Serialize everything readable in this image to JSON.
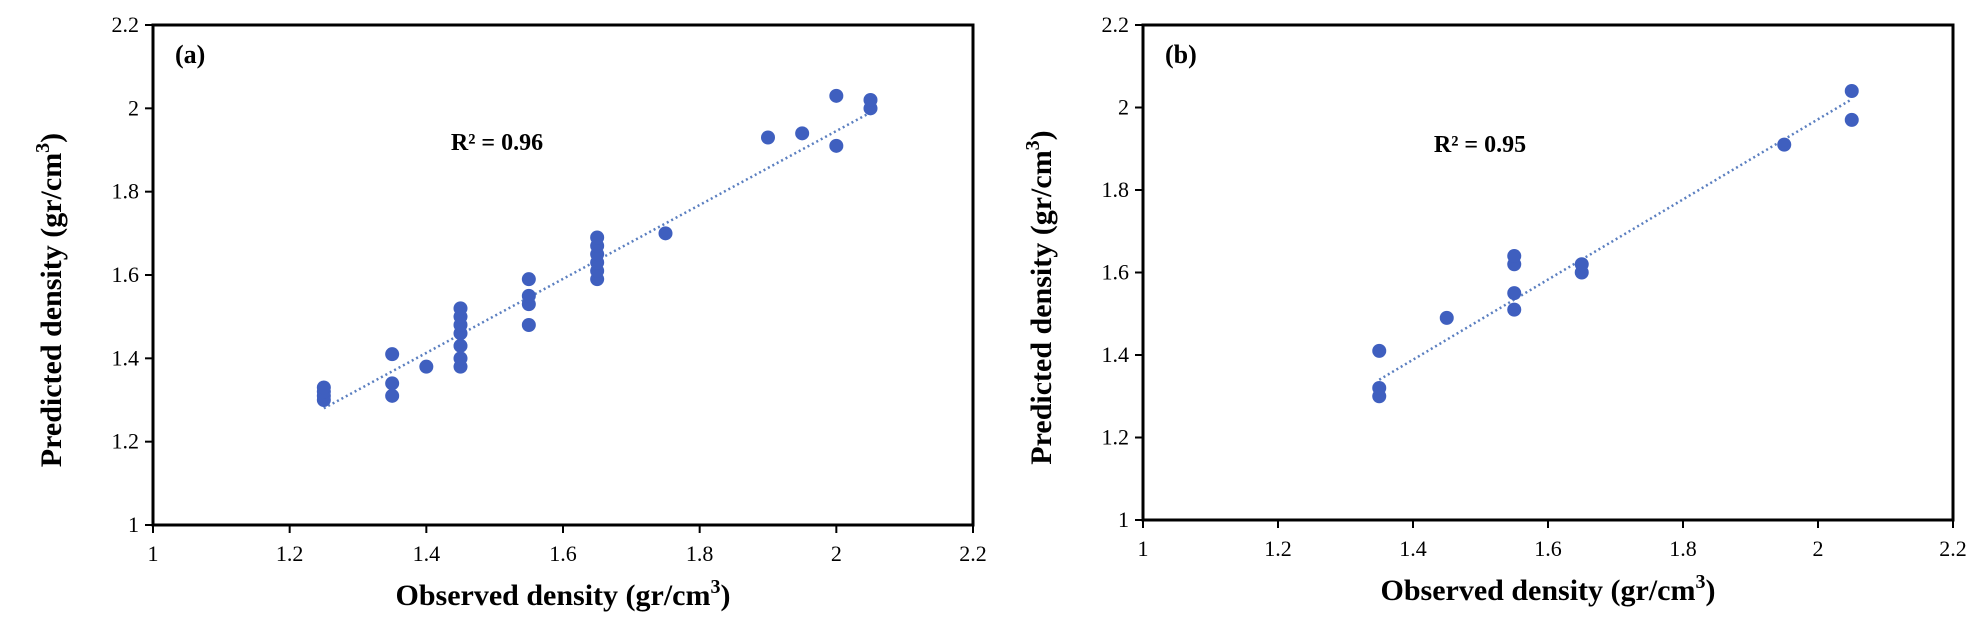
{
  "chart_data": [
    {
      "type": "scatter",
      "panel_label": "(a)",
      "xlabel": "Observed density (gr/cm",
      "xlabel_sup": "3",
      "xlabel_end": ")",
      "ylabel": "Predicted density (gr/cm",
      "ylabel_sup": "3",
      "ylabel_end": ")",
      "xlim": [
        1,
        2.2
      ],
      "ylim": [
        1,
        2.2
      ],
      "x_ticks": [
        1,
        1.2,
        1.4,
        1.6,
        1.8,
        2,
        2.2
      ],
      "y_ticks": [
        1,
        1.2,
        1.4,
        1.6,
        1.8,
        2,
        2.2
      ],
      "x_tick_labels": [
        "1",
        "1.2",
        "1.4",
        "1.6",
        "1.8",
        "2",
        "2.2"
      ],
      "y_tick_labels": [
        "1",
        "1.2",
        "1.4",
        "1.6",
        "1.8",
        "2",
        "2.2"
      ],
      "annotation": "R² = 0.96",
      "trendline": {
        "style": "dotted",
        "x": [
          1.25,
          2.05
        ],
        "y": [
          1.28,
          1.99
        ]
      },
      "marker_color": "#3f5fbf",
      "trendline_color": "#5b7fc0",
      "points": [
        {
          "x": 1.25,
          "y": 1.3
        },
        {
          "x": 1.25,
          "y": 1.31
        },
        {
          "x": 1.25,
          "y": 1.32
        },
        {
          "x": 1.25,
          "y": 1.33
        },
        {
          "x": 1.35,
          "y": 1.31
        },
        {
          "x": 1.35,
          "y": 1.34
        },
        {
          "x": 1.35,
          "y": 1.41
        },
        {
          "x": 1.4,
          "y": 1.38
        },
        {
          "x": 1.45,
          "y": 1.38
        },
        {
          "x": 1.45,
          "y": 1.4
        },
        {
          "x": 1.45,
          "y": 1.43
        },
        {
          "x": 1.45,
          "y": 1.46
        },
        {
          "x": 1.45,
          "y": 1.48
        },
        {
          "x": 1.45,
          "y": 1.5
        },
        {
          "x": 1.45,
          "y": 1.52
        },
        {
          "x": 1.55,
          "y": 1.48
        },
        {
          "x": 1.55,
          "y": 1.53
        },
        {
          "x": 1.55,
          "y": 1.55
        },
        {
          "x": 1.55,
          "y": 1.59
        },
        {
          "x": 1.65,
          "y": 1.59
        },
        {
          "x": 1.65,
          "y": 1.61
        },
        {
          "x": 1.65,
          "y": 1.63
        },
        {
          "x": 1.65,
          "y": 1.65
        },
        {
          "x": 1.65,
          "y": 1.67
        },
        {
          "x": 1.65,
          "y": 1.69
        },
        {
          "x": 1.75,
          "y": 1.7
        },
        {
          "x": 1.9,
          "y": 1.93
        },
        {
          "x": 1.95,
          "y": 1.94
        },
        {
          "x": 2.0,
          "y": 1.91
        },
        {
          "x": 2.0,
          "y": 2.03
        },
        {
          "x": 2.05,
          "y": 2.0
        },
        {
          "x": 2.05,
          "y": 2.02
        }
      ]
    },
    {
      "type": "scatter",
      "panel_label": "(b)",
      "xlabel": "Observed density (gr/cm",
      "xlabel_sup": "3",
      "xlabel_end": ")",
      "ylabel": "Predicted density (gr/cm",
      "ylabel_sup": "3",
      "ylabel_end": ")",
      "xlim": [
        1,
        2.2
      ],
      "ylim": [
        1,
        2.2
      ],
      "x_ticks": [
        1,
        1.2,
        1.4,
        1.6,
        1.8,
        2,
        2.2
      ],
      "y_ticks": [
        1,
        1.2,
        1.4,
        1.6,
        1.8,
        2,
        2.2
      ],
      "x_tick_labels": [
        "1",
        "1.2",
        "1.4",
        "1.6",
        "1.8",
        "2",
        "2.2"
      ],
      "y_tick_labels": [
        "1",
        "1.2",
        "1.4",
        "1.6",
        "1.8",
        "2",
        "2.2"
      ],
      "annotation": "R² = 0.95",
      "trendline": {
        "style": "dotted",
        "x": [
          1.35,
          2.05
        ],
        "y": [
          1.34,
          2.02
        ]
      },
      "marker_color": "#3f5fbf",
      "trendline_color": "#5b7fc0",
      "points": [
        {
          "x": 1.35,
          "y": 1.3
        },
        {
          "x": 1.35,
          "y": 1.32
        },
        {
          "x": 1.35,
          "y": 1.41
        },
        {
          "x": 1.45,
          "y": 1.49
        },
        {
          "x": 1.55,
          "y": 1.51
        },
        {
          "x": 1.55,
          "y": 1.55
        },
        {
          "x": 1.55,
          "y": 1.62
        },
        {
          "x": 1.55,
          "y": 1.64
        },
        {
          "x": 1.65,
          "y": 1.6
        },
        {
          "x": 1.65,
          "y": 1.62
        },
        {
          "x": 1.95,
          "y": 1.91
        },
        {
          "x": 2.05,
          "y": 1.97
        },
        {
          "x": 2.05,
          "y": 2.04
        }
      ]
    }
  ]
}
